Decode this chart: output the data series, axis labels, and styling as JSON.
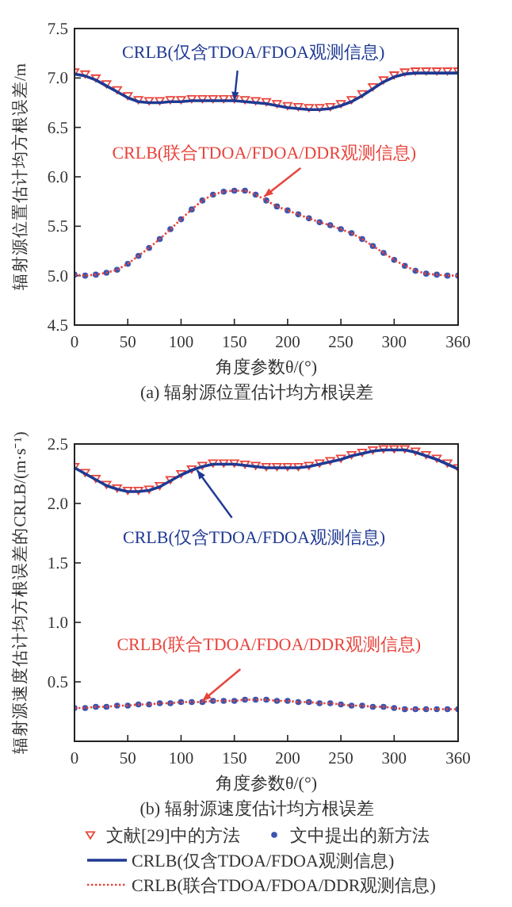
{
  "chart_data": [
    {
      "type": "line",
      "title": "(a) 辐射源位置估计均方根误差",
      "xlabel": "角度参数θ/(°)",
      "ylabel": "辐射源位置估计均方根误差/m",
      "x": [
        0,
        10,
        20,
        30,
        40,
        50,
        60,
        70,
        80,
        90,
        100,
        110,
        120,
        130,
        140,
        150,
        160,
        170,
        180,
        190,
        200,
        210,
        220,
        230,
        240,
        250,
        260,
        270,
        280,
        290,
        300,
        310,
        320,
        330,
        340,
        350,
        360
      ],
      "xlim": [
        0,
        360
      ],
      "xticks": [
        0,
        50,
        100,
        150,
        200,
        250,
        300,
        360
      ],
      "ylim": [
        4.5,
        7.5
      ],
      "yticks": [
        4.5,
        {
          "value": 5,
          "label": "5.0"
        },
        5.5,
        {
          "value": 6,
          "label": "6.0"
        },
        6.5,
        {
          "value": 7,
          "label": "7.0"
        },
        7.5
      ],
      "grid": false,
      "legend": false,
      "series": [
        {
          "type": "scatter",
          "marker": "triangle",
          "color": "#e8443c",
          "values": [
            7.06,
            7.04,
            7.0,
            6.94,
            6.88,
            6.82,
            6.78,
            6.77,
            6.77,
            6.78,
            6.78,
            6.79,
            6.79,
            6.79,
            6.79,
            6.79,
            6.78,
            6.77,
            6.76,
            6.74,
            6.72,
            6.71,
            6.7,
            6.7,
            6.71,
            6.74,
            6.78,
            6.84,
            6.91,
            6.98,
            7.03,
            7.06,
            7.07,
            7.07,
            7.07,
            7.07,
            7.07
          ]
        },
        {
          "type": "scatter",
          "marker": "circle",
          "color": "#3a55b0",
          "values": [
            5.01,
            5.0,
            5.01,
            5.03,
            5.06,
            5.12,
            5.2,
            5.28,
            5.37,
            5.47,
            5.57,
            5.67,
            5.76,
            5.82,
            5.85,
            5.86,
            5.86,
            5.82,
            5.76,
            5.7,
            5.66,
            5.62,
            5.58,
            5.54,
            5.51,
            5.47,
            5.43,
            5.37,
            5.3,
            5.23,
            5.16,
            5.1,
            5.05,
            5.02,
            5.01,
            5.0,
            5.0
          ]
        },
        {
          "type": "line",
          "line_style": "solid",
          "color": "#1f3a93",
          "values": [
            7.04,
            7.02,
            6.98,
            6.92,
            6.86,
            6.8,
            6.76,
            6.75,
            6.75,
            6.76,
            6.76,
            6.77,
            6.77,
            6.77,
            6.77,
            6.77,
            6.76,
            6.75,
            6.74,
            6.72,
            6.7,
            6.69,
            6.68,
            6.68,
            6.69,
            6.72,
            6.76,
            6.82,
            6.89,
            6.96,
            7.01,
            7.04,
            7.05,
            7.05,
            7.05,
            7.05,
            7.05
          ]
        },
        {
          "type": "line",
          "line_style": "dotted",
          "color": "#e8443c",
          "values": [
            5.01,
            5.0,
            5.01,
            5.03,
            5.06,
            5.12,
            5.2,
            5.28,
            5.37,
            5.47,
            5.57,
            5.67,
            5.76,
            5.82,
            5.85,
            5.86,
            5.86,
            5.82,
            5.76,
            5.7,
            5.66,
            5.62,
            5.58,
            5.54,
            5.51,
            5.47,
            5.43,
            5.37,
            5.3,
            5.23,
            5.16,
            5.1,
            5.05,
            5.02,
            5.01,
            5.0,
            5.0
          ]
        }
      ],
      "annotations": [
        {
          "text": "CRLB(仅含TDOA/FDOA观测信息)",
          "x": 150,
          "y": 6.77
        },
        {
          "text": "CRLB(联合TDOA/FDOA/DDR观测信息)",
          "x": 178,
          "y": 5.8
        }
      ]
    },
    {
      "type": "line",
      "title": "(b) 辐射源速度估计均方根误差",
      "xlabel": "角度参数θ/(°)",
      "ylabel": "辐射源速度估计均方根误差的CRLB/(m·s⁻¹)",
      "x": [
        0,
        10,
        20,
        30,
        40,
        50,
        60,
        70,
        80,
        90,
        100,
        110,
        120,
        130,
        140,
        150,
        160,
        170,
        180,
        190,
        200,
        210,
        220,
        230,
        240,
        250,
        260,
        270,
        280,
        290,
        300,
        310,
        320,
        330,
        340,
        350,
        360
      ],
      "xlim": [
        0,
        360
      ],
      "xticks": [
        0,
        50,
        100,
        150,
        200,
        250,
        300,
        360
      ],
      "ylim": [
        0,
        2.5
      ],
      "yticks": [
        {
          "value": 0,
          "label": null
        },
        0.5,
        {
          "value": 1,
          "label": "1.0"
        },
        1.5,
        {
          "value": 2,
          "label": "2.0"
        },
        2.5
      ],
      "grid": false,
      "legend": "bottom",
      "series": [
        {
          "name": "文献[29]中的方法",
          "type": "scatter",
          "marker": "triangle",
          "color": "#e8443c",
          "values": [
            2.31,
            2.26,
            2.21,
            2.16,
            2.13,
            2.11,
            2.11,
            2.12,
            2.15,
            2.2,
            2.25,
            2.29,
            2.32,
            2.34,
            2.34,
            2.34,
            2.33,
            2.32,
            2.31,
            2.31,
            2.31,
            2.31,
            2.32,
            2.34,
            2.36,
            2.38,
            2.41,
            2.43,
            2.45,
            2.46,
            2.46,
            2.46,
            2.44,
            2.41,
            2.38,
            2.34,
            2.3
          ]
        },
        {
          "name": "文中提出的新方法",
          "type": "scatter",
          "marker": "circle",
          "color": "#3a55b0",
          "values": [
            0.28,
            0.28,
            0.29,
            0.29,
            0.3,
            0.3,
            0.31,
            0.31,
            0.32,
            0.32,
            0.33,
            0.33,
            0.33,
            0.34,
            0.34,
            0.34,
            0.35,
            0.35,
            0.35,
            0.34,
            0.34,
            0.33,
            0.33,
            0.32,
            0.32,
            0.31,
            0.3,
            0.3,
            0.29,
            0.29,
            0.28,
            0.27,
            0.27,
            0.27,
            0.27,
            0.27,
            0.27
          ]
        },
        {
          "name": "CRLB(仅含TDOA/FDOA观测信息)",
          "type": "line",
          "line_style": "solid",
          "color": "#1f3a93",
          "values": [
            2.3,
            2.25,
            2.2,
            2.15,
            2.12,
            2.1,
            2.1,
            2.11,
            2.14,
            2.19,
            2.24,
            2.28,
            2.31,
            2.33,
            2.33,
            2.33,
            2.32,
            2.31,
            2.3,
            2.3,
            2.3,
            2.3,
            2.31,
            2.33,
            2.35,
            2.37,
            2.4,
            2.42,
            2.44,
            2.45,
            2.45,
            2.45,
            2.43,
            2.4,
            2.37,
            2.33,
            2.29
          ]
        },
        {
          "name": "CRLB(联合TDOA/FDOA/DDR观测信息)",
          "type": "line",
          "line_style": "dotted",
          "color": "#e8443c",
          "values": [
            0.28,
            0.28,
            0.29,
            0.29,
            0.3,
            0.3,
            0.31,
            0.31,
            0.32,
            0.32,
            0.33,
            0.33,
            0.33,
            0.34,
            0.34,
            0.34,
            0.35,
            0.35,
            0.35,
            0.34,
            0.34,
            0.33,
            0.33,
            0.32,
            0.32,
            0.31,
            0.3,
            0.3,
            0.29,
            0.29,
            0.28,
            0.27,
            0.27,
            0.27,
            0.27,
            0.27,
            0.27
          ]
        }
      ],
      "annotations": [
        {
          "text": "CRLB(仅含TDOA/FDOA观测信息)",
          "x": 115,
          "y": 2.28
        },
        {
          "text": "CRLB(联合TDOA/FDOA/DDR观测信息)",
          "x": 120,
          "y": 0.34
        }
      ]
    }
  ]
}
